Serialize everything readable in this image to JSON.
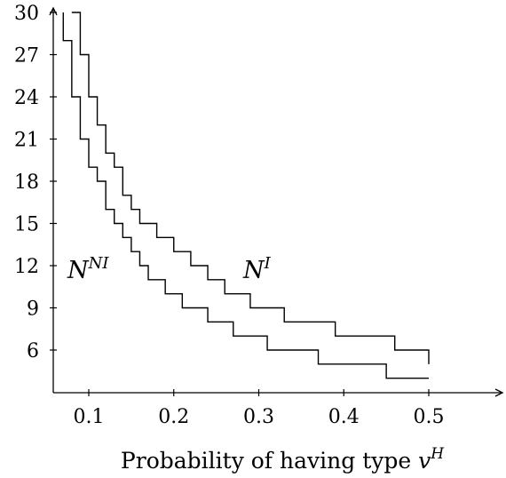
{
  "chart_data": {
    "type": "line",
    "title": "",
    "xlabel": "Probability of having type",
    "xlabel_symbol": "v",
    "xlabel_symbol_sup": "H",
    "ylabel": "",
    "xlim": [
      0.05,
      0.59
    ],
    "ylim": [
      2.8,
      30
    ],
    "x_ticks": [
      "0.1",
      "0.2",
      "0.3",
      "0.4",
      "0.5"
    ],
    "y_ticks": [
      "6",
      "9",
      "12",
      "15",
      "18",
      "21",
      "24",
      "27",
      "30"
    ],
    "grid": false,
    "step": true,
    "series": [
      {
        "name": "N^NI",
        "label_base": "N",
        "label_sup": "NI",
        "color": "#000000",
        "x": [
          0.07,
          0.08,
          0.09,
          0.1,
          0.11,
          0.12,
          0.13,
          0.14,
          0.15,
          0.16,
          0.17,
          0.19,
          0.21,
          0.24,
          0.27,
          0.31,
          0.37,
          0.45,
          0.5
        ],
        "y": [
          28,
          24,
          21,
          19,
          18,
          16,
          15,
          14,
          13,
          12,
          11,
          10,
          9,
          8,
          7,
          6,
          5,
          4,
          4
        ]
      },
      {
        "name": "N^I",
        "label_base": "N",
        "label_sup": "I",
        "color": "#000000",
        "x": [
          0.08,
          0.09,
          0.1,
          0.11,
          0.12,
          0.13,
          0.14,
          0.15,
          0.16,
          0.18,
          0.2,
          0.22,
          0.24,
          0.26,
          0.29,
          0.33,
          0.39,
          0.46,
          0.5
        ],
        "y": [
          30,
          27,
          24,
          22,
          20,
          19,
          17,
          16,
          15,
          14,
          13,
          12,
          11,
          10,
          9,
          8,
          7,
          6,
          5
        ]
      }
    ]
  }
}
